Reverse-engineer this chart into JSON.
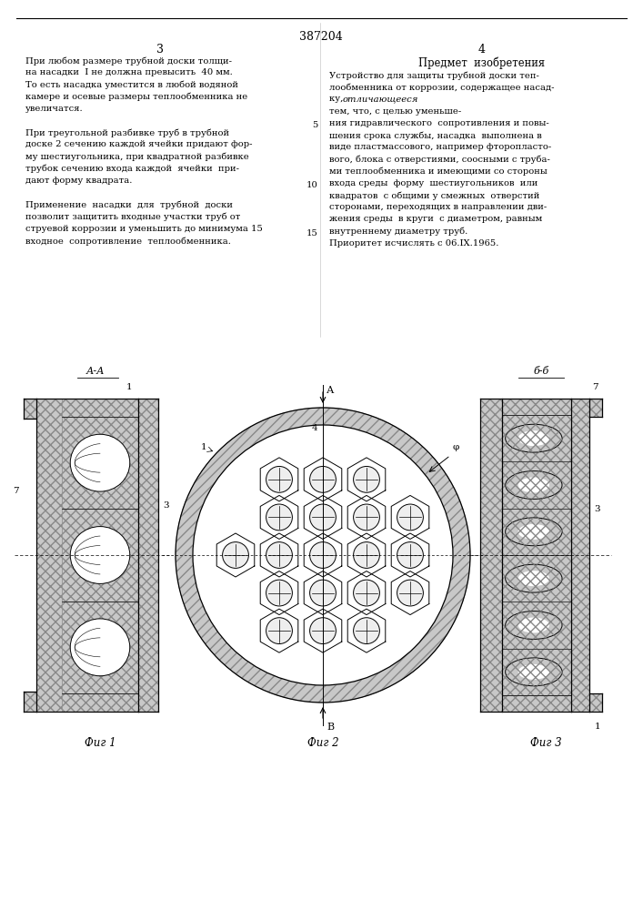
{
  "patent_number": "387204",
  "page_left": "3",
  "page_right": "4",
  "bg_color": "#ffffff",
  "line_color": "#000000",
  "left_col_lines": [
    "При любом размере трубной доски толщи-",
    "на насадки  I не должна превысить  40 мм.",
    "То есть насадка уместится в любой водяной",
    "камере и осевые размеры теплообменника не",
    "увеличатся.",
    "",
    "При треугольной разбивке труб в трубной",
    "доске 2 сечению каждой ячейки придают фор-",
    "му шестиугольника, при квадратной разбивке",
    "трубок сечению входа каждой  ячейки  при-",
    "дают форму квадрата.",
    "",
    "Применение  насадки  для  трубной  доски",
    "позволит защитить входные участки труб от",
    "струевой коррозии и уменьшить до минимума 15",
    "входное  сопротивление  теплообменника."
  ],
  "right_col_header": "Предмет  изобретения",
  "right_col_lines": [
    "Устройство для защиты трубной доски теп-",
    "лообменника от коррозии, содержащее насад-",
    "ку, ",
    "тем, что, с целью уменьше-",
    "ния гидравлического  сопротивления и повы-",
    "шения срока службы, насадка  выполнена в",
    "виде пластмассового, например фторопласто-",
    "вого, блока с отверстиями, соосными с труба-",
    "ми теплообменника и имеющими со стороны",
    "входа среды  форму  шестиугольников  или",
    "квадратов  с общими у смежных  отверстий",
    "сторонами, переходящих в направлении дви-",
    "жения среды  в круги  с диаметром, равным",
    "внутреннему диаметру труб.",
    "Приоритет исчислять с 06.IX.1965."
  ],
  "fig1_label": "Фиг 1",
  "fig2_label": "Фиг 2",
  "fig3_label": "Фиг 3",
  "line_numbers": [
    "5",
    "10",
    "15"
  ],
  "line_num_rows": [
    4,
    9,
    13
  ]
}
